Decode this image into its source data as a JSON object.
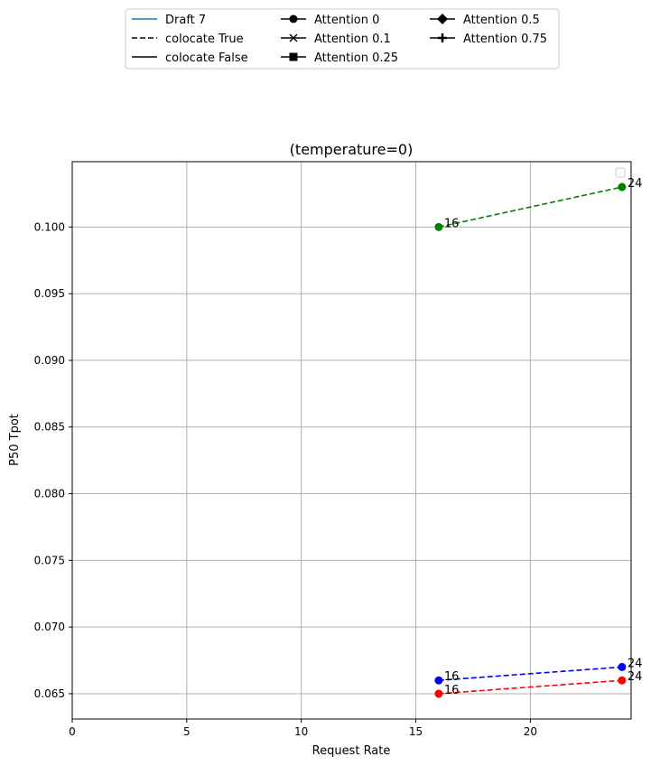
{
  "chart_data": {
    "type": "line",
    "title": "(temperature=0)",
    "xlabel": "Request Rate",
    "ylabel": "P50 Tpot",
    "xlim": [
      0,
      24.4
    ],
    "ylim": [
      0.0631,
      0.1049
    ],
    "grid": true,
    "x_ticks": [
      0,
      5,
      10,
      15,
      20
    ],
    "y_ticks": [
      0.065,
      0.07,
      0.075,
      0.08,
      0.085,
      0.09,
      0.095,
      0.1
    ],
    "legend": {
      "placement": "top-center",
      "entries": [
        {
          "label": "Draft 7",
          "style": "solid",
          "color": "#1f77b4",
          "marker": "none"
        },
        {
          "label": "colocate True",
          "style": "dashed",
          "color": "#000000",
          "marker": "none"
        },
        {
          "label": "colocate False",
          "style": "solid",
          "color": "#000000",
          "marker": "none"
        },
        {
          "label": "Attention 0",
          "style": "solid",
          "color": "#000000",
          "marker": "circle"
        },
        {
          "label": "Attention 0.1",
          "style": "solid",
          "color": "#000000",
          "marker": "x"
        },
        {
          "label": "Attention 0.25",
          "style": "solid",
          "color": "#000000",
          "marker": "square"
        },
        {
          "label": "Attention 0.5",
          "style": "solid",
          "color": "#000000",
          "marker": "diamond"
        },
        {
          "label": "Attention 0.75",
          "style": "solid",
          "color": "#000000",
          "marker": "plus"
        }
      ]
    },
    "series": [
      {
        "color": "#008000",
        "style": "dashed",
        "marker": "circle",
        "points": [
          {
            "x": 16,
            "y": 0.1,
            "label": "16"
          },
          {
            "x": 24,
            "y": 0.103,
            "label": "24"
          }
        ]
      },
      {
        "color": "#0000ff",
        "style": "dashed",
        "marker": "circle",
        "points": [
          {
            "x": 16,
            "y": 0.066,
            "label": "16"
          },
          {
            "x": 24,
            "y": 0.067,
            "label": "24"
          }
        ]
      },
      {
        "color": "#ff0000",
        "style": "dashed",
        "marker": "circle",
        "points": [
          {
            "x": 16,
            "y": 0.065,
            "label": "16"
          },
          {
            "x": 24,
            "y": 0.066,
            "label": "24"
          }
        ]
      }
    ]
  }
}
